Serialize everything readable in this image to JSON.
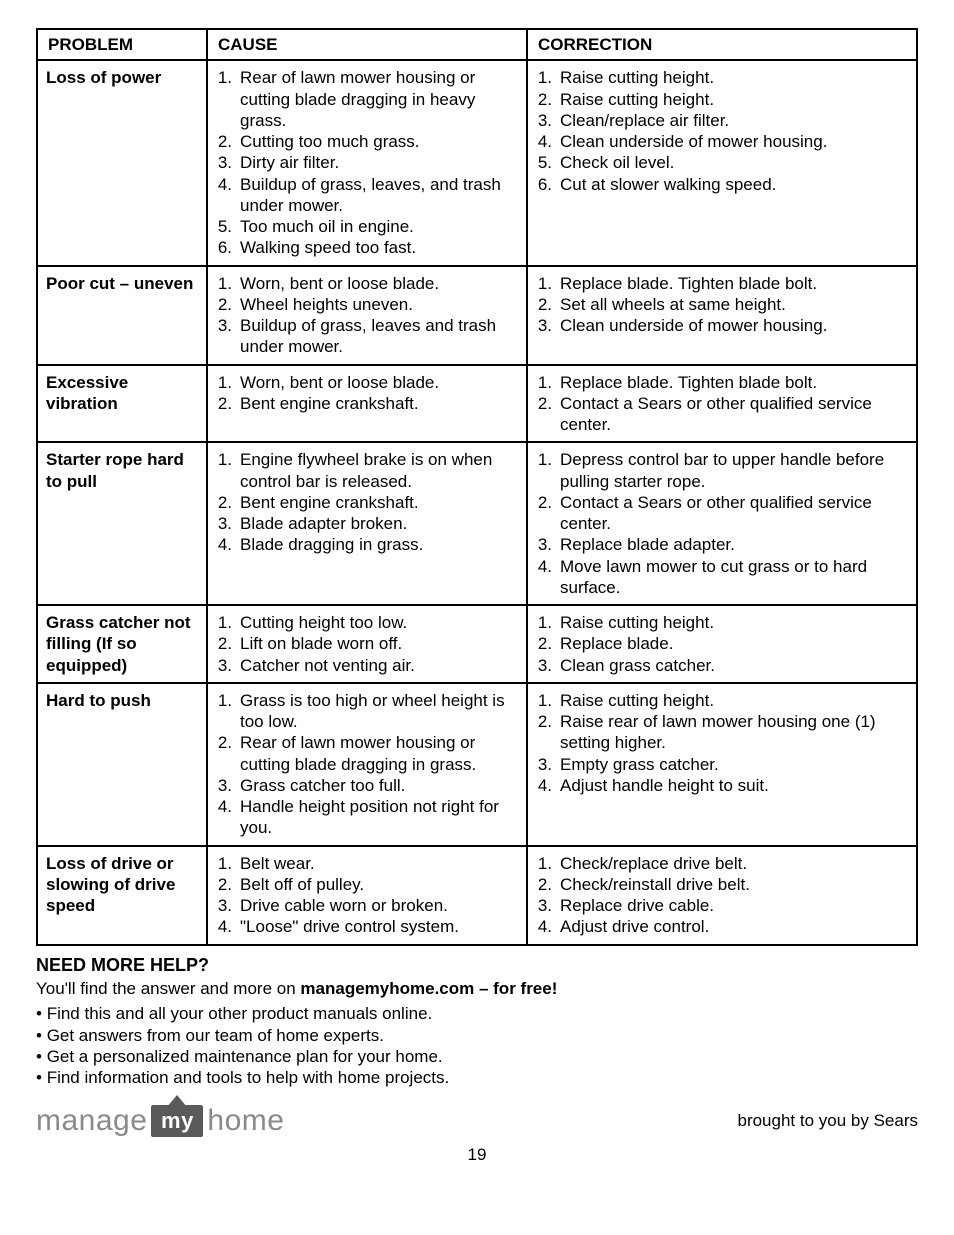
{
  "table": {
    "headers": {
      "problem": "PROBLEM",
      "cause": "CAUSE",
      "correction": "CORRECTION"
    },
    "rows": [
      {
        "problem": "Loss of power",
        "causes": [
          "Rear of lawn mower housing or cutting blade dragging in heavy grass.",
          "Cutting too much grass.",
          "Dirty air filter.",
          "Buildup of grass, leaves, and trash under mower.",
          "Too much oil in engine.",
          "Walking speed too fast."
        ],
        "corrections": [
          "Raise cutting height.",
          "Raise cutting height.",
          "Clean/replace air filter.",
          "Clean underside of mower housing.",
          "Check oil level.",
          "Cut at slower walking speed."
        ]
      },
      {
        "problem": "Poor cut – uneven",
        "causes": [
          "Worn, bent or loose blade.",
          "Wheel heights uneven.",
          "Buildup of grass, leaves and trash under mower."
        ],
        "corrections": [
          "Replace blade. Tighten blade bolt.",
          "Set all wheels at same height.",
          "Clean underside of mower housing."
        ]
      },
      {
        "problem": "Excessive vibration",
        "causes": [
          "Worn, bent or loose blade.",
          "Bent engine crankshaft."
        ],
        "corrections": [
          "Replace blade. Tighten blade bolt.",
          "Contact a Sears or other qualified service center."
        ]
      },
      {
        "problem": "Starter rope hard to pull",
        "causes": [
          "Engine flywheel brake is on when control bar is released.",
          "Bent engine crankshaft.",
          "Blade adapter broken.",
          "Blade dragging in grass."
        ],
        "corrections": [
          "Depress control bar to upper handle before pulling starter rope.",
          "Contact a Sears or other qualified service center.",
          "Replace blade adapter.",
          "Move lawn mower to cut grass or to hard surface."
        ]
      },
      {
        "problem": "Grass catcher not filling (If so equipped)",
        "causes": [
          "Cutting height too low.",
          "Lift on blade worn off.",
          "Catcher not venting air."
        ],
        "corrections": [
          "Raise cutting height.",
          "Replace blade.",
          "Clean grass catcher."
        ]
      },
      {
        "problem": "Hard to push",
        "causes": [
          "Grass is too high or wheel height is too low.",
          "Rear of lawn mower housing or cutting blade dragging in grass.",
          "Grass catcher too full.",
          "Handle height position not right for you."
        ],
        "corrections": [
          "Raise cutting height.",
          "Raise rear of lawn mower housing one (1) setting higher.",
          "Empty grass catcher.",
          "Adjust handle height to suit."
        ]
      },
      {
        "problem": "Loss of drive or slowing of drive speed",
        "causes": [
          "Belt wear.",
          "Belt off of pulley.",
          "Drive cable worn or broken.",
          "\"Loose\" drive control system."
        ],
        "corrections": [
          "Check/replace drive belt.",
          "Check/reinstall drive belt.",
          "Replace drive cable.",
          "Adjust drive control."
        ]
      }
    ]
  },
  "help": {
    "heading": "NEED MORE HELP?",
    "intro_prefix": "You'll find the answer and more on ",
    "intro_bold": "managemyhome.com – for free!",
    "bullets": [
      "Find this and all your other product manuals online.",
      "Get answers from our team of home experts.",
      "Get a personalized maintenance plan for your home.",
      "Find information and tools to help with home projects."
    ]
  },
  "logo": {
    "word1": "manage",
    "badge": "my",
    "word2": "home"
  },
  "sears": "brought to you by Sears",
  "page_number": "19"
}
